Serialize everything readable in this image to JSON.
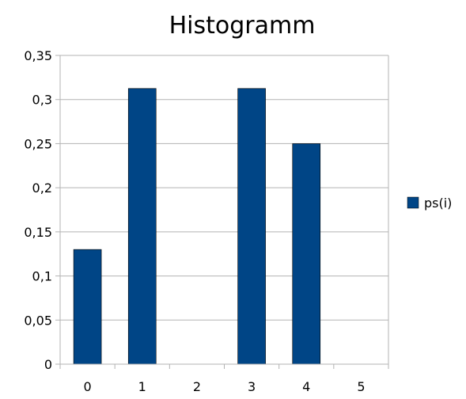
{
  "chart_data": {
    "type": "bar",
    "title": "Histogramm",
    "xlabel": "",
    "ylabel": "",
    "categories": [
      "0",
      "1",
      "2",
      "3",
      "4",
      "5"
    ],
    "series": [
      {
        "name": "ps(i)",
        "values": [
          0.13,
          0.3125,
          0,
          0.3125,
          0.25,
          0
        ],
        "color": "#004586"
      }
    ],
    "ylim": [
      0,
      0.35
    ],
    "y_ticks": [
      0,
      0.05,
      0.1,
      0.15,
      0.2,
      0.25,
      0.3,
      0.35
    ],
    "y_tick_labels": [
      "0",
      "0,05",
      "0,1",
      "0,15",
      "0,2",
      "0,25",
      "0,3",
      "0,35"
    ],
    "grid": true,
    "legend": "right"
  }
}
